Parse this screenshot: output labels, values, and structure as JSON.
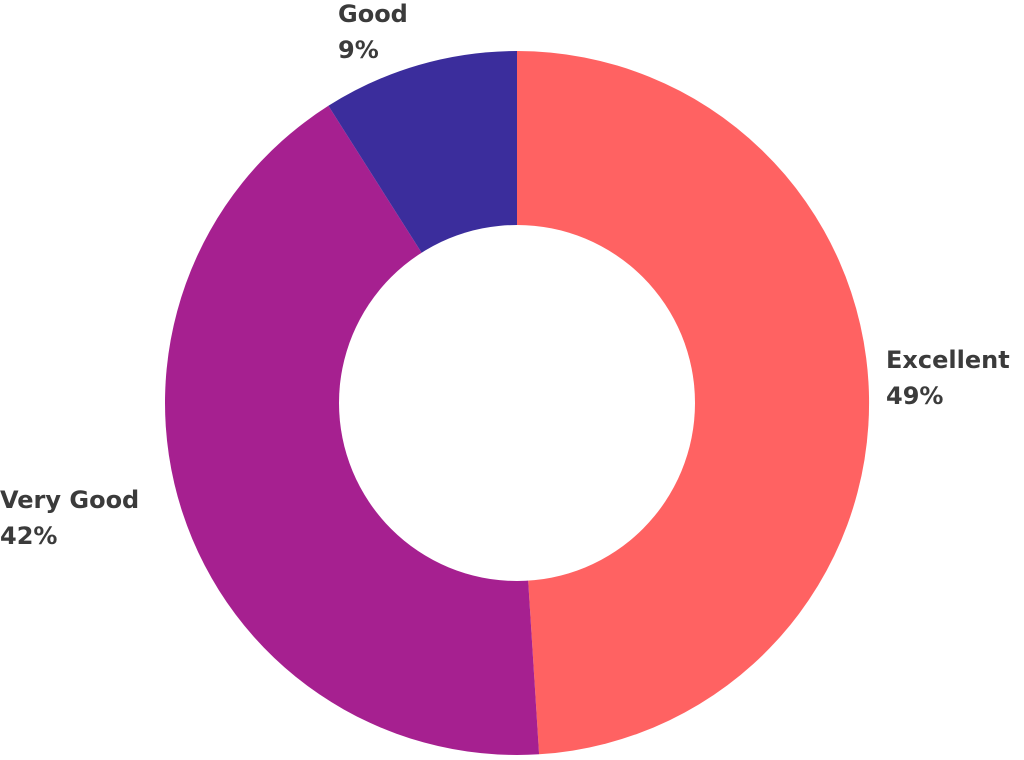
{
  "chart_data": {
    "type": "pie",
    "variant": "donut",
    "title": "",
    "slices": [
      {
        "label": "Excellent",
        "value": 49,
        "percent_label": "49%",
        "color": "#FF6262"
      },
      {
        "label": "Very Good",
        "value": 42,
        "percent_label": "42%",
        "color": "#A62090"
      },
      {
        "label": "Good",
        "value": 9,
        "percent_label": "9%",
        "color": "#3B2D9C"
      }
    ],
    "label_color": "#3B3B3B",
    "background": "#FFFFFF"
  }
}
